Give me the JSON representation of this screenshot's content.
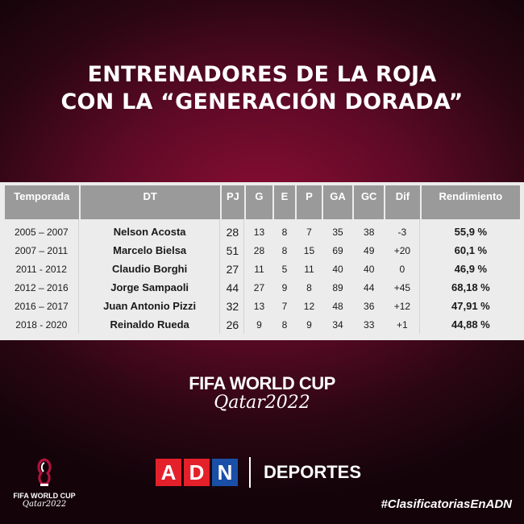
{
  "title": {
    "line1": "ENTRENADORES DE LA ROJA",
    "line2": "CON LA “GENERACIÓN DORADA”"
  },
  "table": {
    "headers": [
      "Temporada",
      "DT",
      "PJ",
      "G",
      "E",
      "P",
      "GA",
      "GC",
      "Dif",
      "Rendimiento"
    ],
    "rows": [
      [
        "2005 – 2007",
        "Nelson Acosta",
        "28",
        "13",
        "8",
        "7",
        "35",
        "38",
        "-3",
        "55,9 %"
      ],
      [
        "2007 – 2011",
        "Marcelo Bielsa",
        "51",
        "28",
        "8",
        "15",
        "69",
        "49",
        "+20",
        "60,1 %"
      ],
      [
        "2011 - 2012",
        "Claudio Borghi",
        "27",
        "11",
        "5",
        "11",
        "40",
        "40",
        "0",
        "46,9 %"
      ],
      [
        "2012 – 2016",
        "Jorge Sampaoli",
        "44",
        "27",
        "9",
        "8",
        "89",
        "44",
        "+45",
        "68,18 %"
      ],
      [
        "2016 – 2017",
        "Juan Antonio Pizzi",
        "32",
        "13",
        "7",
        "12",
        "48",
        "36",
        "+12",
        "47,91 %"
      ],
      [
        "2018 - 2020",
        "Reinaldo Rueda",
        "26",
        "9",
        "8",
        "9",
        "34",
        "33",
        "+1",
        "44,88 %"
      ]
    ]
  },
  "world_cup": {
    "line1": "FIFA WORLD CUP",
    "line2": "Qatar2022"
  },
  "small_logo": {
    "line1": "FIFA WORLD CUP",
    "line2": "Qatar2022"
  },
  "brand": {
    "letters": [
      "A",
      "D",
      "N"
    ],
    "colors": [
      "#e4202a",
      "#e4202a",
      "#1a4fa8"
    ],
    "section": "DEPORTES"
  },
  "hashtag": "#ClasificatoriasEnADN"
}
